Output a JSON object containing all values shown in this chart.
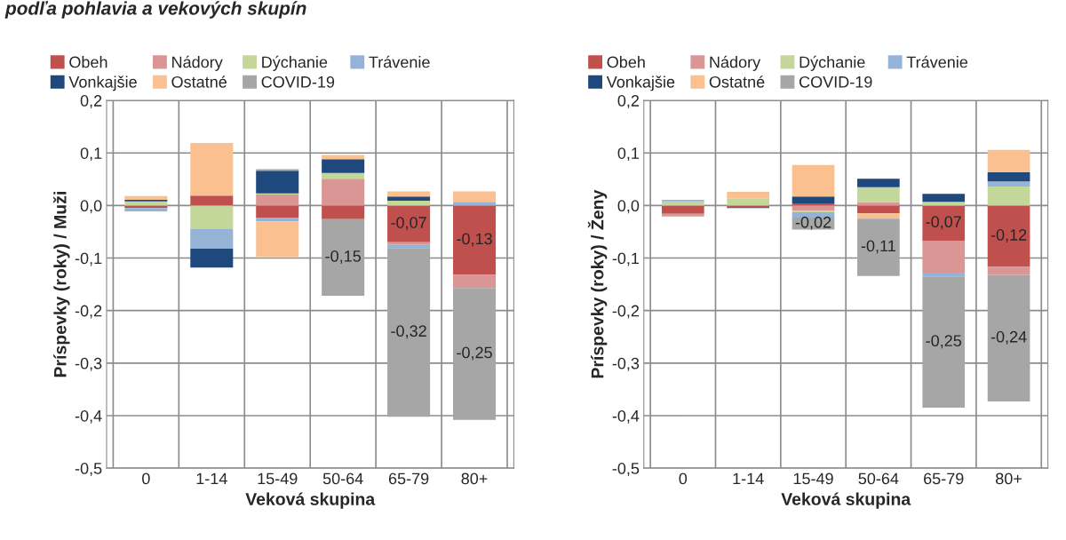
{
  "chart_data": [
    {
      "type": "bar",
      "title": "podľa pohlavia a vekových skupín",
      "ylabel": "Príspevky (roky) / Muži",
      "xlabel": "Veková skupina",
      "stacked": true,
      "legend": "top",
      "grid": true,
      "categories": [
        "0",
        "1-14",
        "15-49",
        "50-64",
        "65-79",
        "80+"
      ],
      "ylim": [
        -0.5,
        0.2
      ],
      "yticks": [
        {
          "value": -0.5,
          "label": "-0,5"
        },
        {
          "value": -0.4,
          "label": "-0,4"
        },
        {
          "value": -0.3,
          "label": "-0,3"
        },
        {
          "value": -0.2,
          "label": "-0,2"
        },
        {
          "value": -0.1,
          "label": "-0,1"
        },
        {
          "value": 0,
          "label": "0,0"
        },
        {
          "value": 0.1,
          "label": "0,1"
        },
        {
          "value": 0.2,
          "label": "0,2"
        }
      ],
      "series": [
        {
          "name": "Obeh",
          "color": "#c0504d",
          "values": [
            -0.005,
            0.019,
            -0.023,
            -0.026,
            -0.07,
            -0.132
          ],
          "value_labels": [
            null,
            null,
            null,
            null,
            "-0,07",
            "-0,13"
          ]
        },
        {
          "name": "Nádory",
          "color": "#da9694",
          "values": [
            0,
            0,
            0.021,
            0.051,
            -0.005,
            -0.025
          ]
        },
        {
          "name": "Dýchanie",
          "color": "#c4d79b",
          "values": [
            0.008,
            -0.045,
            0.002,
            0.011,
            0.009,
            0
          ]
        },
        {
          "name": "Trávenie",
          "color": "#95b3d7",
          "values": [
            -0.006,
            -0.037,
            -0.007,
            0,
            -0.006,
            0.007
          ]
        },
        {
          "name": "Vonkajšie",
          "color": "#1f497d",
          "values": [
            0.003,
            -0.036,
            0.043,
            0.026,
            0.008,
            0
          ]
        },
        {
          "name": "Ostatné",
          "color": "#fac090",
          "values": [
            0.007,
            0.1,
            -0.068,
            0.008,
            0.01,
            0.02
          ]
        },
        {
          "name": "COVID-19",
          "color": "#a6a6a6",
          "values": [
            0,
            0,
            0.003,
            -0.146,
            -0.321,
            -0.251
          ],
          "value_labels": [
            null,
            null,
            null,
            "-0,15",
            "-0,32",
            "-0,25"
          ]
        }
      ]
    },
    {
      "type": "bar",
      "ylabel": "Príspevky (roky) / Ženy",
      "xlabel": "Veková skupina",
      "stacked": true,
      "legend": "top",
      "grid": true,
      "categories": [
        "0",
        "1-14",
        "15-49",
        "50-64",
        "65-79",
        "80+"
      ],
      "ylim": [
        -0.5,
        0.2
      ],
      "yticks": [
        {
          "value": -0.5,
          "label": "-0,5"
        },
        {
          "value": -0.4,
          "label": "-0,4"
        },
        {
          "value": -0.3,
          "label": "-0,3"
        },
        {
          "value": -0.2,
          "label": "-0,2"
        },
        {
          "value": -0.1,
          "label": "-0,1"
        },
        {
          "value": 0,
          "label": "0,0"
        },
        {
          "value": 0.1,
          "label": "0,1"
        },
        {
          "value": 0.2,
          "label": "0,2"
        }
      ],
      "series": [
        {
          "name": "Obeh",
          "color": "#c0504d",
          "values": [
            -0.016,
            -0.003,
            0.004,
            -0.015,
            -0.067,
            -0.117
          ],
          "value_labels": [
            null,
            null,
            null,
            null,
            "-0,07",
            "-0,12"
          ]
        },
        {
          "name": "Nádory",
          "color": "#da9694",
          "values": [
            -0.005,
            0,
            -0.01,
            0.006,
            -0.061,
            -0.015
          ]
        },
        {
          "name": "Dýchanie",
          "color": "#c4d79b",
          "values": [
            0.008,
            0.013,
            -0.003,
            0.029,
            0.007,
            0.036
          ]
        },
        {
          "name": "Trávenie",
          "color": "#95b3d7",
          "values": [
            0.003,
            0,
            -0.01,
            0,
            -0.007,
            0.01
          ]
        },
        {
          "name": "Vonkajšie",
          "color": "#1f497d",
          "values": [
            0,
            -0.002,
            0.013,
            0.016,
            0.015,
            0.017
          ]
        },
        {
          "name": "Ostatné",
          "color": "#fac090",
          "values": [
            0,
            0.013,
            0.06,
            -0.01,
            0,
            0.043
          ]
        },
        {
          "name": "COVID-19",
          "color": "#a6a6a6",
          "values": [
            0,
            0,
            -0.023,
            -0.109,
            -0.25,
            -0.241
          ],
          "value_labels": [
            null,
            null,
            "-0,02",
            "-0,11",
            "-0,25",
            "-0,24"
          ]
        }
      ]
    }
  ]
}
